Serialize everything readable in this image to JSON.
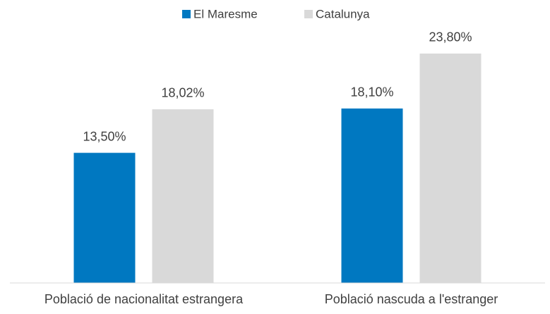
{
  "chart_data": {
    "type": "bar",
    "categories": [
      "Població de nacionalitat estrangera",
      "Població nascuda a l'estranger"
    ],
    "series": [
      {
        "name": "El Maresme",
        "color": "#0078c1",
        "values": [
          13.5,
          18.1
        ],
        "value_labels": [
          "13,50%",
          "18,10%"
        ]
      },
      {
        "name": "Catalunya",
        "color": "#d9d9d9",
        "values": [
          18.02,
          23.8
        ],
        "value_labels": [
          "18,02%",
          "23,80%"
        ]
      }
    ],
    "ylim": [
      0,
      25
    ],
    "legend": "top"
  }
}
